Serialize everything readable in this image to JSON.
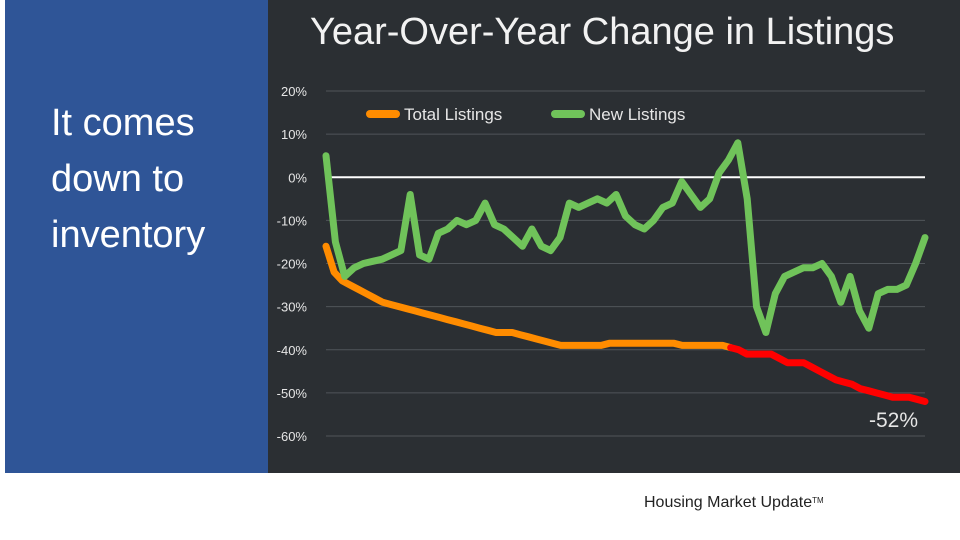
{
  "slide": {
    "side_text": "It comes down to inventory",
    "footer": "Housing Market Update",
    "footer_mark": "TM"
  },
  "chart_data": {
    "type": "line",
    "title": "Year-Over-Year Change in Listings",
    "ylim": [
      -60,
      20
    ],
    "yticks": [
      20,
      10,
      0,
      -10,
      -20,
      -30,
      -40,
      -50,
      -60
    ],
    "ytick_labels": [
      "20%",
      "10%",
      "0%",
      "-10%",
      "-20%",
      "-30%",
      "-40%",
      "-50%",
      "-60%"
    ],
    "grid": true,
    "legend": "top-left",
    "annotation": "-52%",
    "colors": {
      "total": "#ff8c00",
      "total_recent": "#ff0000",
      "new": "#70c35a",
      "zero_line": "#ffffff",
      "grid": "#50555a",
      "text": "#e6e6e6"
    },
    "series": [
      {
        "name": "Total Listings",
        "recent_from_index": 50,
        "values": [
          -16,
          -22,
          -24,
          -25,
          -26,
          -27,
          -28,
          -29,
          -29.5,
          -30,
          -30.5,
          -31,
          -31.5,
          -32,
          -32.5,
          -33,
          -33.5,
          -34,
          -34.5,
          -35,
          -35.5,
          -36,
          -36,
          -36,
          -36.5,
          -37,
          -37.5,
          -38,
          -38.5,
          -39,
          -39,
          -39,
          -39,
          -39,
          -39,
          -38.5,
          -38.5,
          -38.5,
          -38.5,
          -38.5,
          -38.5,
          -38.5,
          -38.5,
          -38.5,
          -39,
          -39,
          -39,
          -39,
          -39,
          -39,
          -39.5,
          -40,
          -41,
          -41,
          -41,
          -41,
          -42,
          -43,
          -43,
          -43,
          -44,
          -45,
          -46,
          -47,
          -47.5,
          -48,
          -49,
          -49.5,
          -50,
          -50.5,
          -51,
          -51,
          -51,
          -51.5,
          -52
        ]
      },
      {
        "name": "New Listings",
        "values": [
          5,
          -15,
          -23,
          -21,
          -20,
          -19.5,
          -19,
          -18,
          -17,
          -4,
          -18,
          -19,
          -13,
          -12,
          -10,
          -11,
          -10,
          -6,
          -11,
          -12,
          -14,
          -16,
          -12,
          -16,
          -17,
          -14,
          -6,
          -7,
          -6,
          -5,
          -6,
          -4,
          -9,
          -11,
          -12,
          -10,
          -7,
          -6,
          -1,
          -4,
          -7,
          -5,
          1,
          4,
          8,
          -5,
          -30,
          -36,
          -27,
          -23,
          -22,
          -21,
          -21,
          -20,
          -23,
          -29,
          -23,
          -31,
          -35,
          -27,
          -26,
          -26,
          -25,
          -20,
          -14
        ]
      }
    ]
  }
}
